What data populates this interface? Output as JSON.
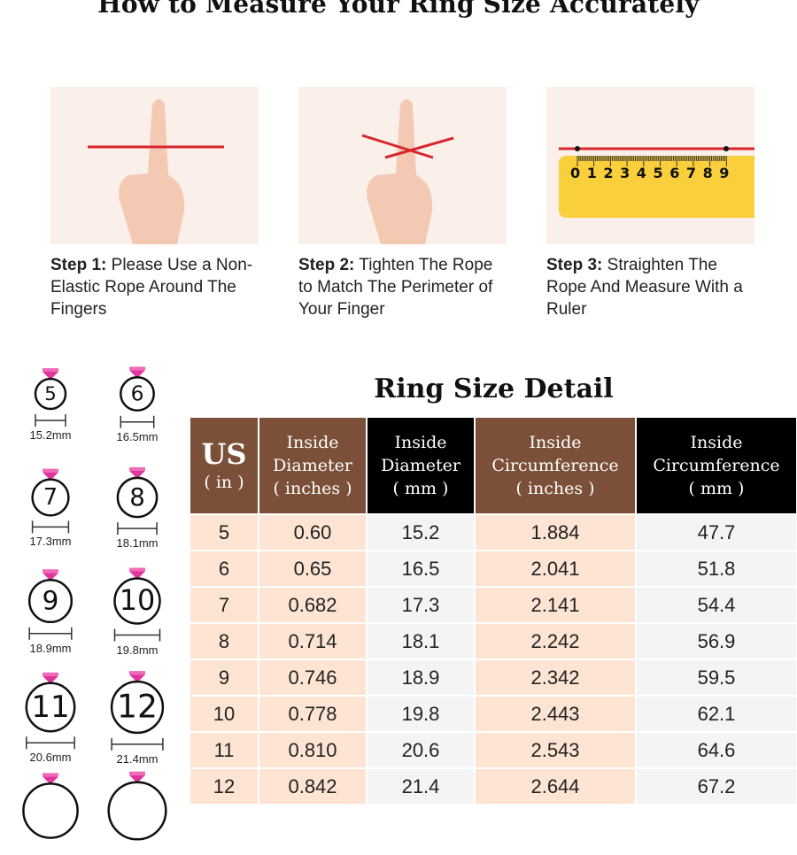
{
  "title": "How to Measure Your Ring Size Accurately",
  "steps": [
    {
      "label": "Step 1:",
      "text": "Please Use a Non-Elastic Rope Around The Fingers"
    },
    {
      "label": "Step 2:",
      "text": "Tighten The Rope to Match The Perimeter of Your Finger"
    },
    {
      "label": "Step 3:",
      "text": "Straighten The Rope And Measure With a Ruler"
    }
  ],
  "ruler_numbers": [
    "0",
    "1",
    "2",
    "3",
    "4",
    "5",
    "6",
    "7",
    "8",
    "9"
  ],
  "colors": {
    "rope": "#d8262b",
    "ruler": "#f9cf3c",
    "gem": "#e0359c",
    "header_brown": "#7b4f38",
    "header_black": "#000000",
    "row_peach": "#fde4d3",
    "row_gray": "#f4f4f4"
  },
  "rings": [
    {
      "size": "5",
      "mm": "15.2mm"
    },
    {
      "size": "6",
      "mm": "16.5mm"
    },
    {
      "size": "7",
      "mm": "17.3mm"
    },
    {
      "size": "8",
      "mm": "18.1mm"
    },
    {
      "size": "9",
      "mm": "18.9mm"
    },
    {
      "size": "10",
      "mm": "19.8mm"
    },
    {
      "size": "11",
      "mm": "20.6mm"
    },
    {
      "size": "12",
      "mm": "21.4mm"
    }
  ],
  "table": {
    "title": "Ring Size Detail",
    "headers": [
      [
        "US",
        "( in )"
      ],
      [
        "Inside",
        "Diameter",
        "( inches )"
      ],
      [
        "Inside",
        "Diameter",
        "( mm )"
      ],
      [
        "Inside",
        "Circumference",
        "( inches )"
      ],
      [
        "Inside",
        "Circumference",
        "( mm )"
      ]
    ],
    "rows": [
      [
        "5",
        "0.60",
        "15.2",
        "1.884",
        "47.7"
      ],
      [
        "6",
        "0.65",
        "16.5",
        "2.041",
        "51.8"
      ],
      [
        "7",
        "0.682",
        "17.3",
        "2.141",
        "54.4"
      ],
      [
        "8",
        "0.714",
        "18.1",
        "2.242",
        "56.9"
      ],
      [
        "9",
        "0.746",
        "18.9",
        "2.342",
        "59.5"
      ],
      [
        "10",
        "0.778",
        "19.8",
        "2.443",
        "62.1"
      ],
      [
        "11",
        "0.810",
        "20.6",
        "2.543",
        "64.6"
      ],
      [
        "12",
        "0.842",
        "21.4",
        "2.644",
        "67.2"
      ]
    ]
  }
}
